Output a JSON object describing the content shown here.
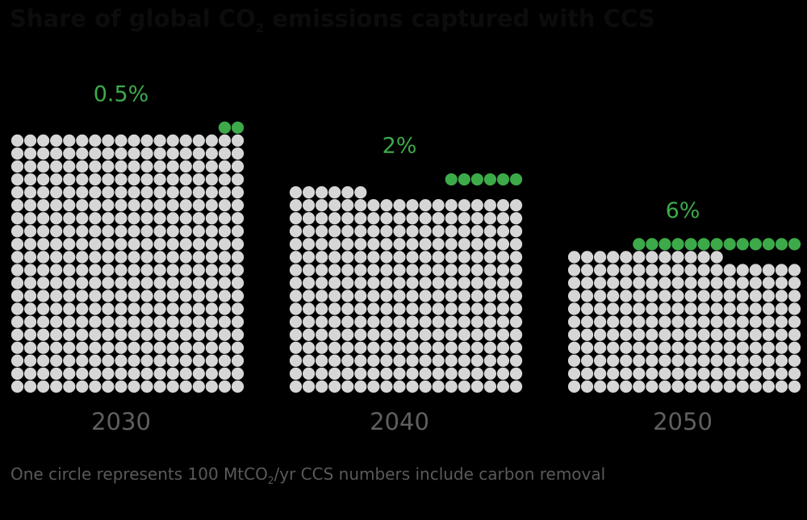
{
  "title": {
    "prefix": "Share of global CO",
    "subscript": "2",
    "suffix": " emissions captured with CCS"
  },
  "footnote": {
    "prefix": "One circle represents 100 MtCO",
    "subscript": "2",
    "suffix": "/yr CCS numbers include carbon removal"
  },
  "colors": {
    "background": "#000000",
    "title": "#0c0c0c",
    "captured": "#3daa4a",
    "emissions": "#d6d6d6",
    "year_label": "#5f5f5f",
    "footnote": "#5a5a5a"
  },
  "chart_data": {
    "type": "waffle",
    "unit": "100 MtCO2/yr per circle",
    "columns": 18,
    "categories": [
      "2030",
      "2040",
      "2050"
    ],
    "series": [
      {
        "name": "captured",
        "values": [
          2,
          6,
          13
        ]
      },
      {
        "name": "emissions",
        "values": [
          360,
          276,
          192
        ]
      }
    ],
    "labels": [
      "0.5%",
      "2%",
      "6%"
    ]
  }
}
